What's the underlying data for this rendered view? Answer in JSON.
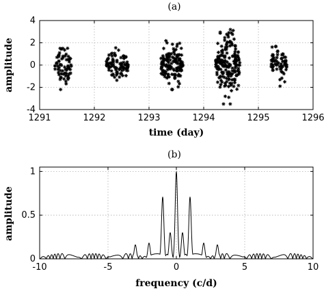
{
  "chart_data": [
    {
      "type": "scatter",
      "panel_label": "(a)",
      "xlabel": "time (day)",
      "ylabel": "amplitude",
      "xlim": [
        1291,
        1296
      ],
      "ylim": [
        -4,
        4
      ],
      "xticks": [
        "1291",
        "1292",
        "1293",
        "1294",
        "1295",
        "1296"
      ],
      "yticks": [
        "-4",
        "-2",
        "0",
        "2",
        "4"
      ],
      "grid": true,
      "marker": "asterisk",
      "series": [
        {
          "clusters": [
            {
              "x_range": [
                1291.28,
                1291.58
              ],
              "amplitude": 2.2,
              "n": 70
            },
            {
              "x_range": [
                1292.22,
                1292.62
              ],
              "amplitude": 1.6,
              "n": 90
            },
            {
              "x_range": [
                1293.22,
                1293.62
              ],
              "amplitude": 2.2,
              "n": 150
            },
            {
              "x_range": [
                1294.22,
                1294.66
              ],
              "amplitude": 3.5,
              "n": 190
            },
            {
              "x_range": [
                1295.22,
                1295.52
              ],
              "amplitude": 1.9,
              "n": 65
            }
          ]
        }
      ]
    },
    {
      "type": "line",
      "panel_label": "(b)",
      "xlabel": "frequency (c/d)",
      "ylabel": "amplitude",
      "xlim": [
        -10,
        10
      ],
      "ylim": [
        0,
        1.05
      ],
      "xticks": [
        "-10",
        "-5",
        "0",
        "5",
        "10"
      ],
      "yticks": [
        "0",
        "0.5",
        "1"
      ],
      "grid": true,
      "series": [
        {
          "peaks": [
            {
              "x": 0,
              "y": 1.0
            },
            {
              "x": -1.0,
              "y": 0.71
            },
            {
              "x": 1.0,
              "y": 0.71
            },
            {
              "x": -2.0,
              "y": 0.18
            },
            {
              "x": 2.0,
              "y": 0.18
            },
            {
              "x": -3.0,
              "y": 0.16
            },
            {
              "x": 3.0,
              "y": 0.16
            },
            {
              "x": -0.45,
              "y": 0.3
            },
            {
              "x": 0.45,
              "y": 0.3
            }
          ],
          "noise_level": 0.06
        }
      ]
    }
  ]
}
